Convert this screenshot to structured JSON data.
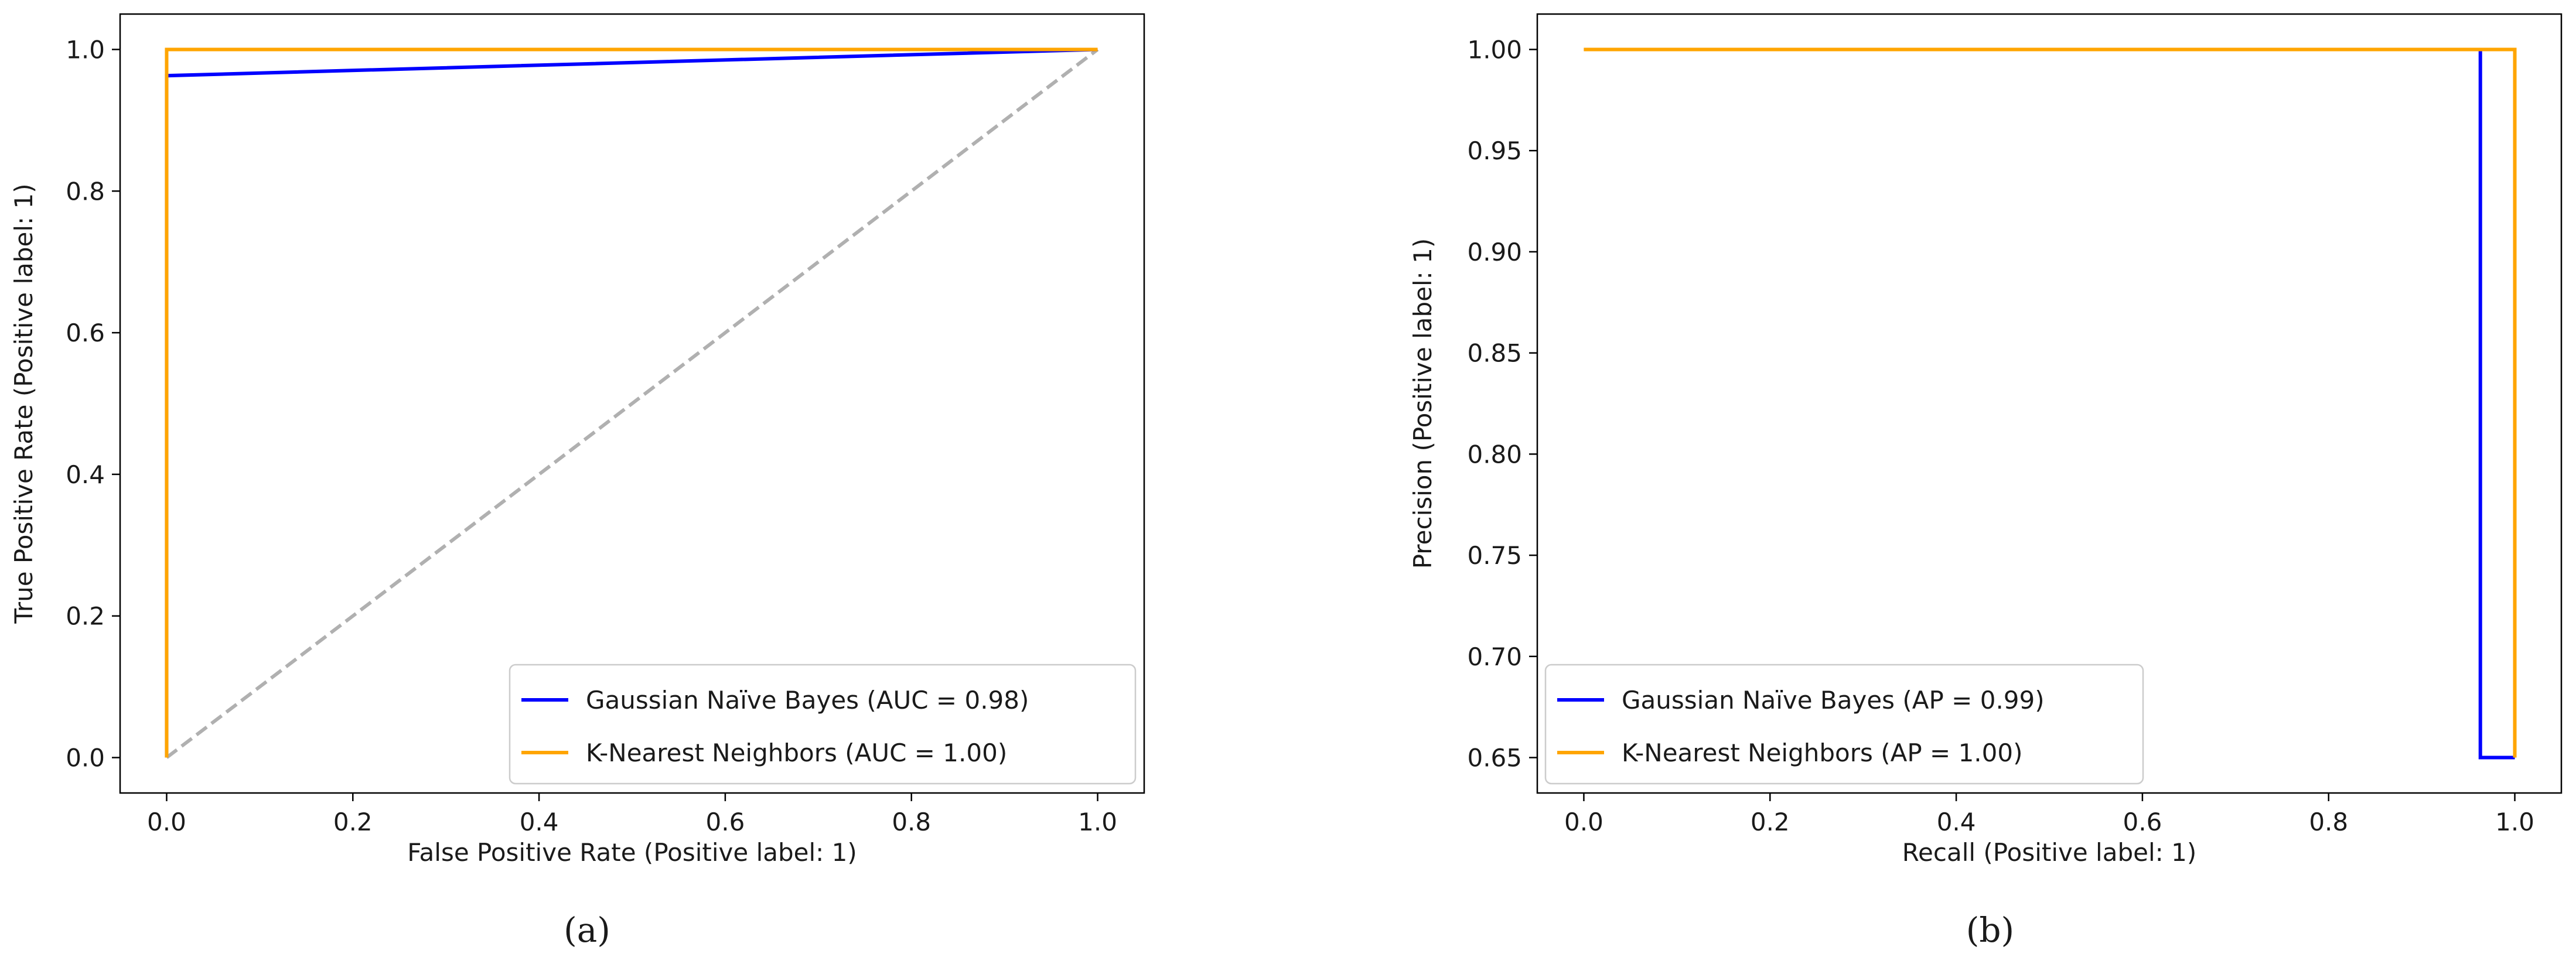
{
  "chart_data": [
    {
      "type": "line",
      "xlabel": "False Positive Rate (Positive label: 1)",
      "ylabel": "True Positive Rate (Positive label: 1)",
      "xlim": [
        -0.05,
        1.05
      ],
      "ylim": [
        -0.05,
        1.05
      ],
      "xticks": [
        0.0,
        0.2,
        0.4,
        0.6,
        0.8,
        1.0
      ],
      "yticks": [
        0.0,
        0.2,
        0.4,
        0.6,
        0.8,
        1.0
      ],
      "grid": false,
      "legend_position": "lower-right",
      "caption": "(a)",
      "series": [
        {
          "name": "Gaussian Naïve Bayes (AUC = 0.98)",
          "color": "#0000ff",
          "x": [
            0.0,
            0.0,
            1.0
          ],
          "y": [
            0.0,
            0.963,
            1.0
          ]
        },
        {
          "name": "K-Nearest Neighbors (AUC = 1.00)",
          "color": "#ffa500",
          "x": [
            0.0,
            0.0,
            1.0
          ],
          "y": [
            0.0,
            1.0,
            1.0
          ]
        }
      ],
      "reference_line": {
        "color": "#b0b0b0",
        "dashed": true,
        "x": [
          0.0,
          1.0
        ],
        "y": [
          0.0,
          1.0
        ]
      }
    },
    {
      "type": "line",
      "xlabel": "Recall (Positive label: 1)",
      "ylabel": "Precision (Positive label: 1)",
      "xlim": [
        -0.05,
        1.05
      ],
      "ylim": [
        0.6325,
        1.0175
      ],
      "xticks": [
        0.0,
        0.2,
        0.4,
        0.6,
        0.8,
        1.0
      ],
      "yticks": [
        0.65,
        0.7,
        0.75,
        0.8,
        0.85,
        0.9,
        0.95,
        1.0
      ],
      "grid": false,
      "legend_position": "lower-left",
      "caption": "(b)",
      "series": [
        {
          "name": "Gaussian Naïve Bayes (AP = 0.99)",
          "color": "#0000ff",
          "x": [
            0.0,
            0.963,
            0.963,
            1.0
          ],
          "y": [
            1.0,
            1.0,
            0.65,
            0.65
          ]
        },
        {
          "name": "K-Nearest Neighbors (AP = 1.00)",
          "color": "#ffa500",
          "x": [
            0.0,
            1.0,
            1.0
          ],
          "y": [
            1.0,
            1.0,
            0.65
          ]
        }
      ]
    }
  ]
}
